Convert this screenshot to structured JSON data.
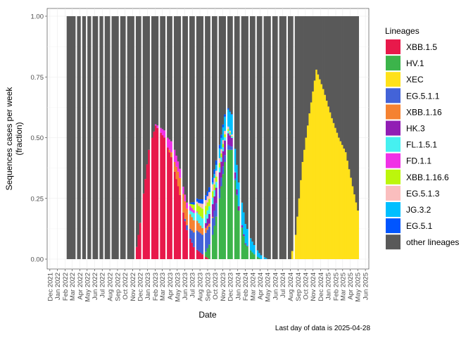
{
  "chart_data": {
    "type": "area",
    "stacked": true,
    "normalized": true,
    "xlabel": "Date",
    "ylabel_lines": [
      "Sequences cases per week",
      "(fraction)"
    ],
    "caption": "Last day of data is 2025-04-28",
    "ylim": [
      0,
      1
    ],
    "y_ticks": [
      "0.00",
      "0.25",
      "0.50",
      "0.75",
      "1.00"
    ],
    "x_ticks": [
      "Dec 2021",
      "Jan 2022",
      "Feb 2022",
      "Mar 2022",
      "Apr 2022",
      "May 2022",
      "Jun 2022",
      "Jul 2022",
      "Aug 2022",
      "Sep 2022",
      "Oct 2022",
      "Nov 2022",
      "Dec 2022",
      "Jan 2023",
      "Feb 2023",
      "Mar 2023",
      "Apr 2023",
      "May 2023",
      "Jun 2023",
      "Jul 2023",
      "Aug 2023",
      "Sep 2023",
      "Oct 2023",
      "Nov 2023",
      "Dec 2023",
      "Jan 2024",
      "Feb 2024",
      "Mar 2024",
      "Apr 2024",
      "May 2024",
      "Jun 2024",
      "Jul 2024",
      "Aug 2024",
      "Sep 2024",
      "Oct 2024",
      "Nov 2024",
      "Dec 2024",
      "Jan 2025",
      "Feb 2025",
      "Mar 2025",
      "Apr 2025",
      "May 2025",
      "Jun 2025"
    ],
    "x_range": [
      "2021-11-20",
      "2025-06-15"
    ],
    "data_range": [
      "2022-02-07",
      "2025-04-28"
    ],
    "grid": true,
    "legend": {
      "title": "Lineages",
      "position": "right",
      "items": [
        {
          "name": "XBB.1.5",
          "color": "#E8194B"
        },
        {
          "name": "HV.1",
          "color": "#3CB44B"
        },
        {
          "name": "XEC",
          "color": "#FFE119"
        },
        {
          "name": "EG.5.1.1",
          "color": "#4363D8"
        },
        {
          "name": "XBB.1.16",
          "color": "#F58231"
        },
        {
          "name": "HK.3",
          "color": "#911EB4"
        },
        {
          "name": "FL.1.5.1",
          "color": "#46F0F0"
        },
        {
          "name": "FD.1.1",
          "color": "#F032E6"
        },
        {
          "name": "XBB.1.16.6",
          "color": "#BCF60C"
        },
        {
          "name": "EG.5.1.3",
          "color": "#FABEBE"
        },
        {
          "name": "JG.3.2",
          "color": "#00BFFF"
        },
        {
          "name": "EG.5.1",
          "color": "#0055FF"
        },
        {
          "name": "other lineages",
          "color": "#595959"
        }
      ]
    },
    "series_profiles": [
      {
        "name": "XBB.1.5",
        "points": [
          [
            "2022-02-07",
            0
          ],
          [
            "2022-11-07",
            0
          ],
          [
            "2022-11-28",
            0.15
          ],
          [
            "2023-01-02",
            0.45
          ],
          [
            "2023-01-30",
            0.55
          ],
          [
            "2023-03-06",
            0.5
          ],
          [
            "2023-04-03",
            0.42
          ],
          [
            "2023-05-01",
            0.3
          ],
          [
            "2023-06-05",
            0.12
          ],
          [
            "2023-07-03",
            0.05
          ],
          [
            "2023-08-07",
            0.02
          ],
          [
            "2023-09-04",
            0.0
          ],
          [
            "2025-04-28",
            0
          ]
        ]
      },
      {
        "name": "HV.1",
        "points": [
          [
            "2022-02-07",
            0
          ],
          [
            "2023-08-14",
            0
          ],
          [
            "2023-09-18",
            0.1
          ],
          [
            "2023-10-16",
            0.25
          ],
          [
            "2023-11-13",
            0.45
          ],
          [
            "2023-12-04",
            0.45
          ],
          [
            "2024-01-01",
            0.2
          ],
          [
            "2024-01-29",
            0.06
          ],
          [
            "2024-03-04",
            0.02
          ],
          [
            "2024-04-01",
            0
          ],
          [
            "2025-04-28",
            0
          ]
        ]
      },
      {
        "name": "XEC",
        "points": [
          [
            "2022-02-07",
            0
          ],
          [
            "2024-07-29",
            0
          ],
          [
            "2024-08-19",
            0.1
          ],
          [
            "2024-09-16",
            0.4
          ],
          [
            "2024-10-14",
            0.6
          ],
          [
            "2024-11-11",
            0.78
          ],
          [
            "2024-12-09",
            0.7
          ],
          [
            "2025-01-13",
            0.58
          ],
          [
            "2025-02-10",
            0.5
          ],
          [
            "2025-03-10",
            0.44
          ],
          [
            "2025-04-07",
            0.3
          ],
          [
            "2025-04-28",
            0.2
          ]
        ]
      },
      {
        "name": "EG.5.1.1",
        "points": [
          [
            "2022-02-07",
            0
          ],
          [
            "2023-05-22",
            0
          ],
          [
            "2023-06-19",
            0.04
          ],
          [
            "2023-07-17",
            0.08
          ],
          [
            "2023-08-14",
            0.08
          ],
          [
            "2023-09-18",
            0.07
          ],
          [
            "2023-10-16",
            0.04
          ],
          [
            "2023-11-20",
            0.02
          ],
          [
            "2024-01-01",
            0
          ],
          [
            "2025-04-28",
            0
          ]
        ]
      },
      {
        "name": "XBB.1.16",
        "points": [
          [
            "2022-02-07",
            0
          ],
          [
            "2023-03-20",
            0
          ],
          [
            "2023-04-17",
            0.04
          ],
          [
            "2023-05-15",
            0.08
          ],
          [
            "2023-06-19",
            0.06
          ],
          [
            "2023-07-17",
            0.04
          ],
          [
            "2023-08-21",
            0.02
          ],
          [
            "2023-09-25",
            0
          ],
          [
            "2025-04-28",
            0
          ]
        ]
      },
      {
        "name": "HK.3",
        "points": [
          [
            "2022-02-07",
            0
          ],
          [
            "2023-08-07",
            0
          ],
          [
            "2023-09-04",
            0.04
          ],
          [
            "2023-10-09",
            0.07
          ],
          [
            "2023-11-06",
            0.06
          ],
          [
            "2023-12-11",
            0.03
          ],
          [
            "2024-01-15",
            0.01
          ],
          [
            "2024-02-12",
            0
          ],
          [
            "2025-04-28",
            0
          ]
        ]
      },
      {
        "name": "FL.1.5.1",
        "points": [
          [
            "2022-02-07",
            0
          ],
          [
            "2023-06-05",
            0
          ],
          [
            "2023-07-03",
            0.03
          ],
          [
            "2023-08-07",
            0.04
          ],
          [
            "2023-09-11",
            0.03
          ],
          [
            "2023-10-16",
            0.02
          ],
          [
            "2023-11-20",
            0.01
          ],
          [
            "2023-12-25",
            0
          ],
          [
            "2025-04-28",
            0
          ]
        ]
      },
      {
        "name": "FD.1.1",
        "points": [
          [
            "2022-02-07",
            0
          ],
          [
            "2023-01-23",
            0
          ],
          [
            "2023-02-20",
            0.02
          ],
          [
            "2023-03-20",
            0.04
          ],
          [
            "2023-04-17",
            0.05
          ],
          [
            "2023-05-22",
            0.03
          ],
          [
            "2023-06-19",
            0.02
          ],
          [
            "2023-07-24",
            0
          ],
          [
            "2025-04-28",
            0
          ]
        ]
      },
      {
        "name": "XBB.1.16.6",
        "points": [
          [
            "2022-02-07",
            0
          ],
          [
            "2023-06-12",
            0
          ],
          [
            "2023-07-10",
            0.03
          ],
          [
            "2023-08-07",
            0.04
          ],
          [
            "2023-09-04",
            0.03
          ],
          [
            "2023-10-09",
            0.02
          ],
          [
            "2023-11-13",
            0.01
          ],
          [
            "2023-12-11",
            0
          ],
          [
            "2025-04-28",
            0
          ]
        ]
      },
      {
        "name": "EG.5.1.3",
        "points": [
          [
            "2022-02-07",
            0
          ],
          [
            "2023-07-03",
            0
          ],
          [
            "2023-08-07",
            0.02
          ],
          [
            "2023-09-11",
            0.03
          ],
          [
            "2023-10-16",
            0.02
          ],
          [
            "2023-11-20",
            0.01
          ],
          [
            "2023-12-18",
            0
          ],
          [
            "2025-04-28",
            0
          ]
        ]
      },
      {
        "name": "JG.3.2",
        "points": [
          [
            "2022-02-07",
            0
          ],
          [
            "2023-09-11",
            0
          ],
          [
            "2023-10-16",
            0.04
          ],
          [
            "2023-11-20",
            0.07
          ],
          [
            "2023-12-25",
            0.1
          ],
          [
            "2024-01-22",
            0.09
          ],
          [
            "2024-02-19",
            0.05
          ],
          [
            "2024-03-25",
            0.02
          ],
          [
            "2024-04-29",
            0
          ],
          [
            "2025-04-28",
            0
          ]
        ]
      },
      {
        "name": "EG.5.1",
        "points": [
          [
            "2022-02-07",
            0
          ],
          [
            "2023-06-05",
            0
          ],
          [
            "2023-07-03",
            0.01
          ],
          [
            "2023-08-14",
            0.02
          ],
          [
            "2023-09-25",
            0.02
          ],
          [
            "2023-11-06",
            0.01
          ],
          [
            "2023-12-11",
            0
          ],
          [
            "2025-04-28",
            0
          ]
        ]
      }
    ],
    "remainder_series": "other lineages",
    "gap_weeks": [
      "2022-03-14",
      "2022-04-04",
      "2022-04-25",
      "2022-05-16",
      "2022-06-13",
      "2022-07-04",
      "2022-08-01",
      "2022-09-05",
      "2022-10-03",
      "2022-11-07",
      "2022-12-05",
      "2023-01-09",
      "2023-02-13",
      "2023-03-13",
      "2023-04-10",
      "2023-05-15",
      "2023-06-12",
      "2023-07-10",
      "2023-08-14",
      "2023-09-11",
      "2023-10-09",
      "2023-11-13",
      "2023-12-11",
      "2024-01-08",
      "2024-02-12",
      "2024-03-11",
      "2024-04-08",
      "2024-05-13",
      "2024-06-10",
      "2024-07-15",
      "2024-08-12"
    ]
  }
}
